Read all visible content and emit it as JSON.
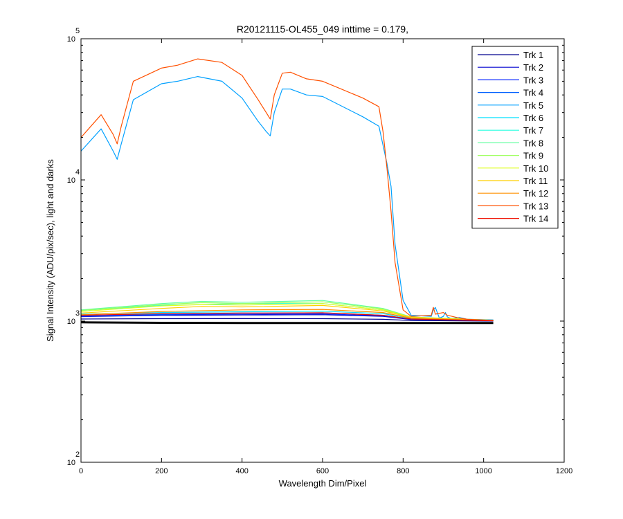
{
  "chart_data": {
    "type": "line",
    "title": "R20121115-OL455_049 inttime = 0.179,",
    "xlabel": "Wavelength Dim/Pixel",
    "ylabel": "Signal Intensity (ADU/pix/sec), light and darks",
    "xlim": [
      0,
      1200
    ],
    "ylim": [
      100,
      100000
    ],
    "yscale": "log",
    "x_ticks": [
      "0",
      "200",
      "400",
      "600",
      "800",
      "1000",
      "1200"
    ],
    "y_ticks": [
      {
        "base": "10",
        "exp": "2"
      },
      {
        "base": "10",
        "exp": "3"
      },
      {
        "base": "10",
        "exp": "4"
      },
      {
        "base": "10",
        "exp": "5"
      }
    ],
    "grid": false,
    "legend_position": "top-right",
    "series": [
      {
        "name": "Trk 1",
        "color": "#00008f",
        "x": [
          0,
          200,
          400,
          600,
          750,
          820,
          1024
        ],
        "y": [
          1035,
          1040,
          1042,
          1040,
          1030,
          1010,
          1000
        ]
      },
      {
        "name": "Trk 2",
        "color": "#0000cf",
        "x": [
          0,
          200,
          400,
          600,
          750,
          820,
          1024
        ],
        "y": [
          1075,
          1098,
          1105,
          1110,
          1080,
          1025,
          1005
        ]
      },
      {
        "name": "Trk 3",
        "color": "#0020ff",
        "x": [
          0,
          200,
          400,
          600,
          750,
          820,
          1024
        ],
        "y": [
          1080,
          1110,
          1120,
          1125,
          1090,
          1030,
          1005
        ]
      },
      {
        "name": "Trk 4",
        "color": "#0060ff",
        "x": [
          0,
          200,
          400,
          600,
          750,
          820,
          1024
        ],
        "y": [
          1090,
          1120,
          1140,
          1145,
          1100,
          1035,
          1008
        ]
      },
      {
        "name": "Trk 5",
        "color": "#00a0ff",
        "x": [
          0,
          50,
          80,
          90,
          100,
          130,
          200,
          240,
          290,
          350,
          400,
          440,
          460,
          470,
          480,
          500,
          520,
          560,
          600,
          700,
          740,
          760,
          770,
          780,
          800,
          820,
          870,
          875,
          880,
          890,
          900,
          905,
          910,
          920,
          940,
          960,
          1024
        ],
        "y": [
          16000,
          23000,
          16000,
          14000,
          18000,
          37000,
          48000,
          50000,
          54000,
          50000,
          38000,
          26000,
          22000,
          20500,
          30000,
          44000,
          44000,
          40000,
          39000,
          28000,
          24000,
          13000,
          9000,
          3500,
          1400,
          1100,
          1080,
          1200,
          1250,
          1050,
          1080,
          1150,
          1070,
          1040,
          1060,
          1030,
          1020
        ]
      },
      {
        "name": "Trk 6",
        "color": "#00e0ff",
        "x": [
          0,
          200,
          400,
          600,
          750,
          820,
          1024
        ],
        "y": [
          1120,
          1150,
          1165,
          1175,
          1130,
          1045,
          1010
        ]
      },
      {
        "name": "Trk 7",
        "color": "#20ffdf",
        "x": [
          0,
          200,
          400,
          600,
          750,
          820,
          1024
        ],
        "y": [
          1190,
          1290,
          1330,
          1330,
          1200,
          1060,
          1012
        ]
      },
      {
        "name": "Trk 8",
        "color": "#60ff9f",
        "x": [
          0,
          200,
          300,
          400,
          600,
          750,
          820,
          1024
        ],
        "y": [
          1200,
          1330,
          1380,
          1360,
          1400,
          1230,
          1070,
          1015
        ]
      },
      {
        "name": "Trk 9",
        "color": "#9fff60",
        "x": [
          0,
          200,
          300,
          400,
          600,
          750,
          820,
          1024
        ],
        "y": [
          1190,
          1310,
          1350,
          1330,
          1370,
          1220,
          1068,
          1014
        ]
      },
      {
        "name": "Trk 10",
        "color": "#dfff20",
        "x": [
          0,
          200,
          300,
          400,
          600,
          750,
          820,
          1024
        ],
        "y": [
          1170,
          1280,
          1310,
          1300,
          1330,
          1200,
          1065,
          1012
        ]
      },
      {
        "name": "Trk 11",
        "color": "#ffcf00",
        "x": [
          0,
          200,
          300,
          400,
          600,
          750,
          820,
          1024
        ],
        "y": [
          1140,
          1230,
          1270,
          1260,
          1290,
          1180,
          1060,
          1010
        ]
      },
      {
        "name": "Trk 12",
        "color": "#ff9000",
        "x": [
          0,
          200,
          400,
          600,
          750,
          820,
          1024
        ],
        "y": [
          1110,
          1170,
          1200,
          1210,
          1150,
          1050,
          1008
        ]
      },
      {
        "name": "Trk 13",
        "color": "#ff5000",
        "x": [
          0,
          50,
          80,
          90,
          100,
          130,
          200,
          240,
          290,
          350,
          400,
          440,
          460,
          470,
          480,
          500,
          520,
          560,
          600,
          700,
          740,
          750,
          760,
          770,
          780,
          800,
          820,
          870,
          875,
          880,
          900,
          910,
          940,
          960,
          1024
        ],
        "y": [
          20000,
          29000,
          21000,
          18000,
          24000,
          50000,
          62000,
          65000,
          72000,
          68000,
          55000,
          37000,
          30000,
          27000,
          40000,
          57000,
          58000,
          52000,
          50000,
          38000,
          33000,
          22000,
          12000,
          6000,
          2600,
          1200,
          1080,
          1100,
          1250,
          1120,
          1150,
          1100,
          1050,
          1030,
          1010
        ]
      },
      {
        "name": "Trk 14",
        "color": "#ef1000",
        "x": [
          0,
          200,
          400,
          600,
          750,
          820,
          1024
        ],
        "y": [
          1100,
          1130,
          1140,
          1145,
          1100,
          1035,
          1005
        ]
      },
      {
        "name": "",
        "color": "#000000",
        "x": [
          0,
          200,
          400,
          600,
          800,
          1024
        ],
        "y": [
          980,
          972,
          970,
          970,
          970,
          970
        ]
      }
    ]
  }
}
